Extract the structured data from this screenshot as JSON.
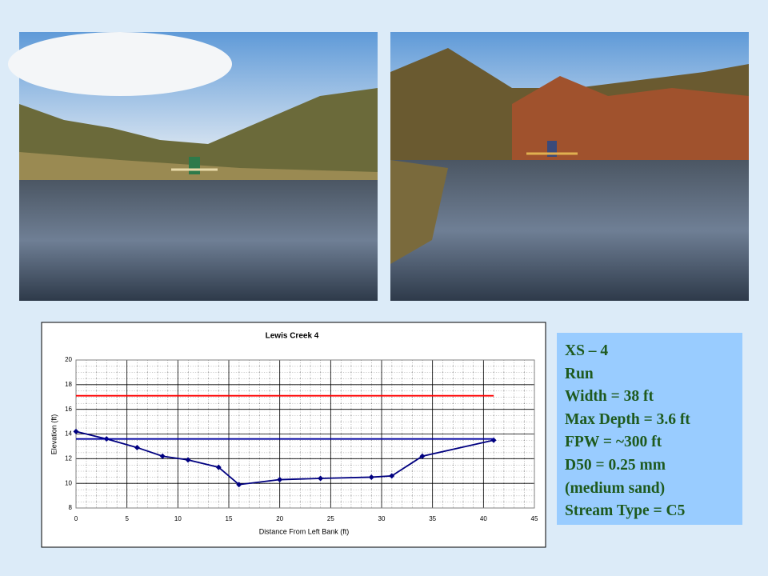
{
  "chart_data": {
    "type": "line",
    "title": "Lewis Creek 4",
    "x_label": "Distance From Left Bank (ft)",
    "y_label": "Elevation (ft)",
    "xlim": [
      0,
      45
    ],
    "xticks": [
      0,
      5,
      10,
      15,
      20,
      25,
      30,
      35,
      40,
      45
    ],
    "ylim": [
      8,
      20
    ],
    "yticks": [
      8,
      10,
      12,
      14,
      16,
      18,
      20
    ],
    "grid": true,
    "series": [
      {
        "color": "#000080",
        "markers": true,
        "x": [
          0,
          3,
          6,
          8.5,
          11,
          14,
          16,
          20,
          24,
          29,
          31,
          34,
          41
        ],
        "values": [
          14.2,
          13.6,
          12.9,
          12.2,
          11.9,
          11.3,
          9.9,
          10.3,
          10.4,
          10.5,
          10.6,
          12.2,
          13.5
        ]
      },
      {
        "color": "#ff0000",
        "markers": false,
        "x": [
          0,
          41
        ],
        "values": [
          17.1,
          17.1
        ]
      },
      {
        "color": "#0000a0",
        "markers": false,
        "x": [
          0,
          41
        ],
        "values": [
          13.6,
          13.6
        ]
      }
    ]
  },
  "info_box": {
    "lines": [
      "XS – 4",
      "Run",
      "Width = 38 ft",
      "Max Depth = 3.6 ft",
      "FPW = ~300 ft",
      "D50 = 0.25 mm",
      "(medium sand)",
      "Stream Type = C5"
    ]
  }
}
